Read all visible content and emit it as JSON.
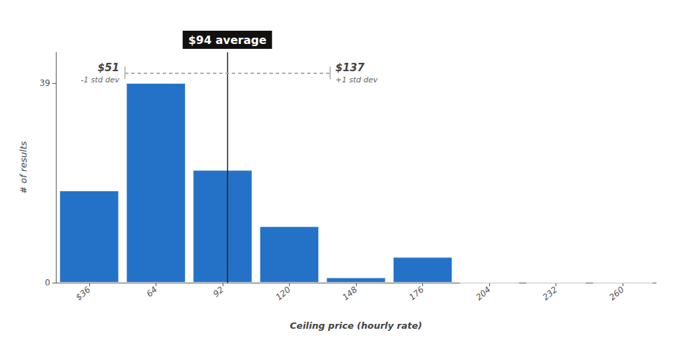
{
  "chart_data": {
    "type": "bar",
    "x": [
      36,
      64,
      92,
      120,
      148,
      176,
      204,
      232,
      260
    ],
    "values": [
      18,
      39,
      22,
      11,
      1,
      5,
      0,
      0,
      0
    ],
    "color": "#2472C8",
    "xlabel": "Ceiling price (hourly rate)",
    "ylabel": "# of results",
    "xlim": [
      22,
      274
    ],
    "xticks": [
      {
        "value": 36,
        "label": "$36"
      },
      64,
      92,
      120,
      148,
      176,
      204,
      232,
      260
    ],
    "ylim": [
      0,
      45
    ],
    "yticks": [
      0,
      39
    ],
    "grid": false,
    "average": {
      "value": 94,
      "label": "$94 average"
    },
    "std_dev": {
      "low": 51,
      "high": 137,
      "y": 41,
      "low_label": "$51",
      "low_note": "-1 std dev",
      "high_label": "$137",
      "high_note": "+1 std dev"
    }
  }
}
